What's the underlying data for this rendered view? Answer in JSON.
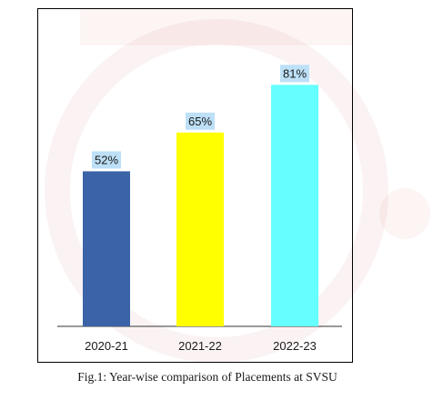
{
  "chart_data": {
    "type": "bar",
    "categories": [
      "2020-21",
      "2021-22",
      "2022-23"
    ],
    "values": [
      52,
      65,
      81
    ],
    "data_labels": [
      "52%",
      "65%",
      "81%"
    ],
    "bar_colors": [
      "#3a63a8",
      "#ffff00",
      "#66ffff"
    ],
    "data_label_background": "#bde0f7",
    "ylim": [
      0,
      100
    ],
    "grid": false,
    "legend": "none",
    "caption": "Fig.1: Year-wise comparison of Placements at SVSU"
  }
}
